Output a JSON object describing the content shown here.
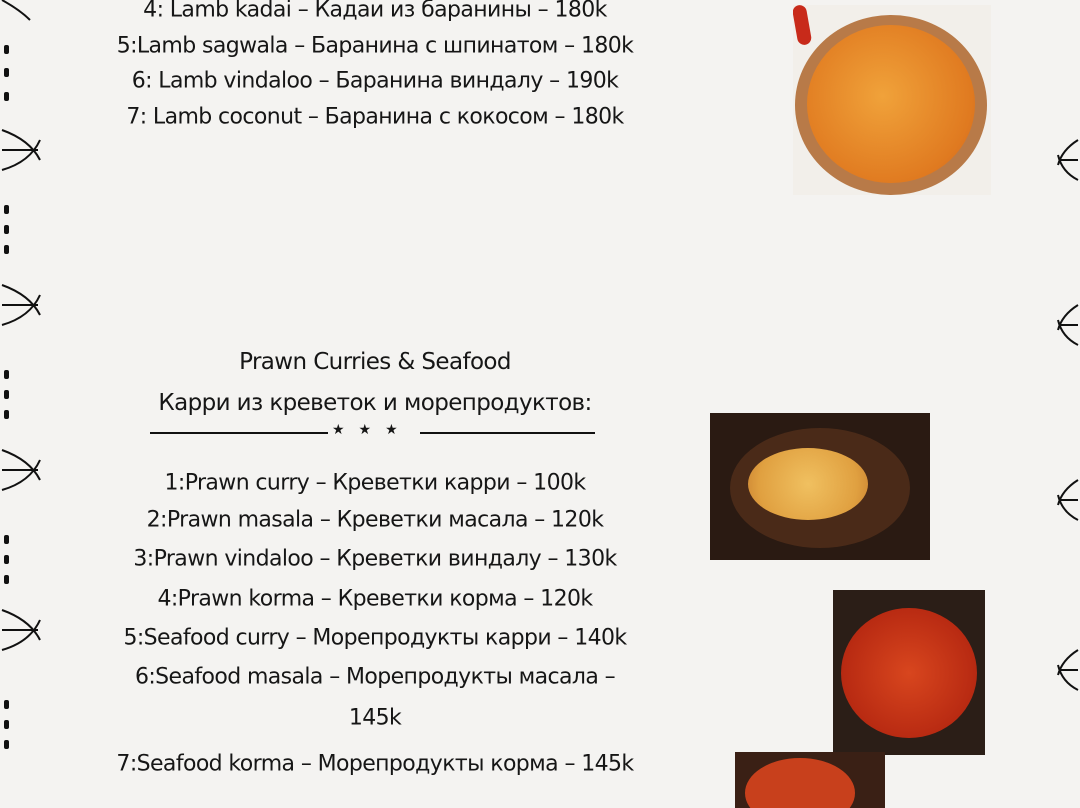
{
  "lamb_items": [
    "4: Lamb kadai – Кадаи из баранины – 180k",
    "5:Lamb sagwala – Баранина с шпинатом – 180k",
    "6: Lamb vindaloo – Баранина виндалу – 190k",
    "7: Lamb coconut – Баранина с кокосом – 180k"
  ],
  "prawn_section": {
    "title_en": "Prawn Curries & Seafood",
    "title_ru": "Карри из креветок и морепродуктов:",
    "divider_stars": "★★★",
    "items": [
      "1:Prawn curry – Креветки карри – 100k",
      "2:Prawn masala – Креветки масала – 120k",
      "3:Prawn vindaloo – Креветки виндалу – 130k",
      "4:Prawn korma – Креветки корма – 120k",
      "5:Seafood curry – Морепродукты карри – 140k",
      "6:Seafood masala – Морепродукты масала –",
      "145k",
      "7:Seafood korma – Морепродукты корма – 145k"
    ]
  },
  "colors": {
    "paper": "#f4f3f1",
    "ink": "#161616",
    "curry": "#e08a2a",
    "sauce_red": "#c0341a"
  }
}
